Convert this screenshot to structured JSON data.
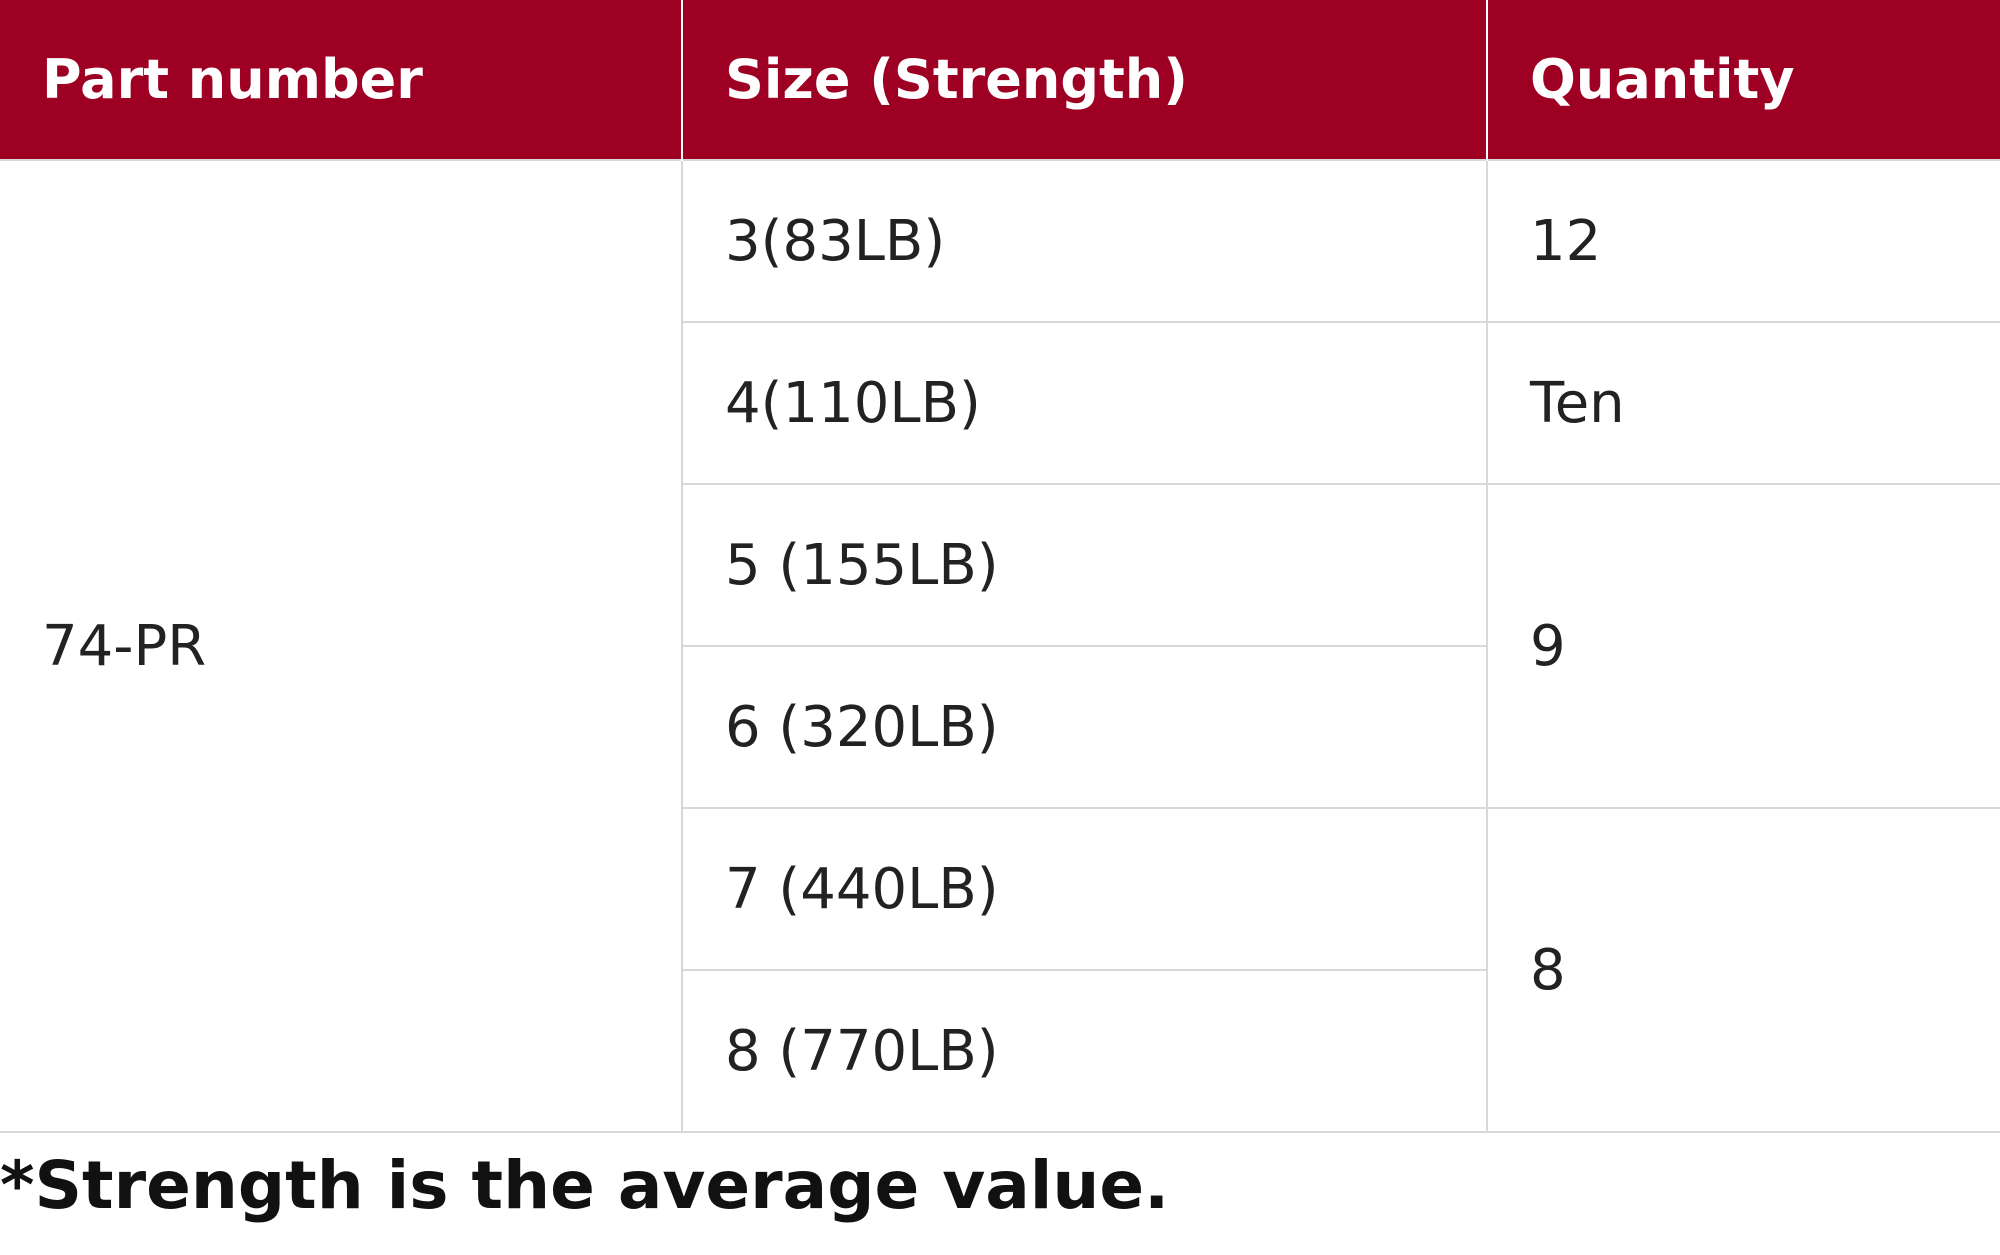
{
  "table": {
    "header": [
      "Part number",
      "Size (Strength)",
      "Quantity"
    ],
    "part_number": "74-PR",
    "sizes": [
      "3(83LB)",
      "4(110LB)",
      "5 (155LB)",
      "6 (320LB)",
      "7 (440LB)",
      "8 (770LB)"
    ],
    "quantities": [
      "12",
      "Ten",
      "9",
      "8"
    ]
  },
  "footnote": "*Strength is the average value."
}
